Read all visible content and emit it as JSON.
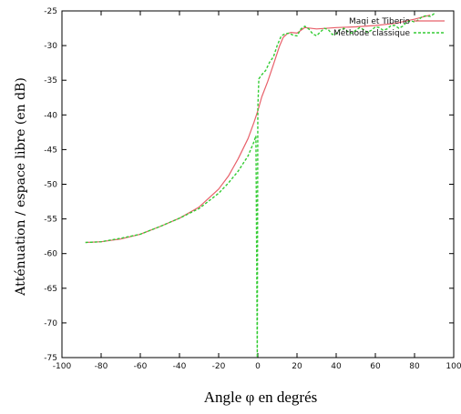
{
  "chart_data": {
    "type": "line",
    "xlabel": "Angle φ en degrés",
    "ylabel": "Atténuation / espace libre (en dB)",
    "xlim": [
      -100,
      100
    ],
    "ylim": [
      -75,
      -25
    ],
    "xticks": [
      -100,
      -80,
      -60,
      -40,
      -20,
      0,
      20,
      40,
      60,
      80,
      100
    ],
    "yticks": [
      -75,
      -70,
      -65,
      -60,
      -55,
      -50,
      -45,
      -40,
      -35,
      -30,
      -25
    ],
    "grid": false,
    "legend_position": "top-right",
    "series": [
      {
        "name": "Maqi et Tiberio",
        "color": "#e8606a",
        "style": "solid",
        "points": [
          [
            -88,
            -58.4
          ],
          [
            -80,
            -58.3
          ],
          [
            -70,
            -57.9
          ],
          [
            -60,
            -57.2
          ],
          [
            -50,
            -56.1
          ],
          [
            -40,
            -54.9
          ],
          [
            -30,
            -53.3
          ],
          [
            -20,
            -50.7
          ],
          [
            -15,
            -48.8
          ],
          [
            -10,
            -46.3
          ],
          [
            -5,
            -43.4
          ],
          [
            -2,
            -41.1
          ],
          [
            0,
            -39.4
          ],
          [
            2,
            -37.4
          ],
          [
            5,
            -35.2
          ],
          [
            8,
            -32.7
          ],
          [
            11,
            -30.1
          ],
          [
            13,
            -28.8
          ],
          [
            15,
            -28.3
          ],
          [
            17,
            -28.1
          ],
          [
            20,
            -28.2
          ],
          [
            24,
            -27.4
          ],
          [
            30,
            -27.6
          ],
          [
            40,
            -27.4
          ],
          [
            50,
            -27.3
          ],
          [
            60,
            -27.1
          ],
          [
            70,
            -26.8
          ],
          [
            80,
            -26.2
          ],
          [
            88,
            -25.6
          ]
        ]
      },
      {
        "name": "Méthode classique",
        "color": "#33cc33",
        "style": "dashed",
        "points": [
          [
            -88,
            -58.4
          ],
          [
            -80,
            -58.3
          ],
          [
            -70,
            -57.8
          ],
          [
            -60,
            -57.2
          ],
          [
            -50,
            -56.1
          ],
          [
            -40,
            -54.9
          ],
          [
            -30,
            -53.5
          ],
          [
            -20,
            -51.3
          ],
          [
            -15,
            -49.8
          ],
          [
            -10,
            -48.1
          ],
          [
            -5,
            -45.9
          ],
          [
            -2,
            -43.9
          ],
          [
            -1,
            -43.0
          ],
          [
            -0.3,
            -75
          ],
          [
            0,
            -39.0
          ],
          [
            0.5,
            -34.8
          ],
          [
            2,
            -34.2
          ],
          [
            4,
            -33.6
          ],
          [
            6,
            -32.4
          ],
          [
            8,
            -31.6
          ],
          [
            10,
            -29.9
          ],
          [
            12,
            -28.6
          ],
          [
            14,
            -28.3
          ],
          [
            16,
            -28.2
          ],
          [
            18,
            -28.5
          ],
          [
            20,
            -28.6
          ],
          [
            22,
            -27.6
          ],
          [
            24,
            -27.2
          ],
          [
            26,
            -27.6
          ],
          [
            28,
            -28.3
          ],
          [
            30,
            -28.6
          ],
          [
            32,
            -28.0
          ],
          [
            34,
            -27.5
          ],
          [
            36,
            -27.7
          ],
          [
            38,
            -28.4
          ],
          [
            40,
            -28.3
          ],
          [
            42,
            -27.7
          ],
          [
            44,
            -27.5
          ],
          [
            46,
            -28.0
          ],
          [
            48,
            -28.2
          ],
          [
            50,
            -27.8
          ],
          [
            52,
            -27.4
          ],
          [
            54,
            -27.7
          ],
          [
            56,
            -28.1
          ],
          [
            58,
            -27.8
          ],
          [
            60,
            -27.3
          ],
          [
            62,
            -27.4
          ],
          [
            64,
            -27.8
          ],
          [
            66,
            -27.6
          ],
          [
            68,
            -27.1
          ],
          [
            70,
            -27.1
          ],
          [
            72,
            -27.5
          ],
          [
            74,
            -27.2
          ],
          [
            76,
            -26.6
          ],
          [
            78,
            -26.4
          ],
          [
            80,
            -26.6
          ],
          [
            82,
            -26.3
          ],
          [
            84,
            -25.8
          ],
          [
            86,
            -25.7
          ],
          [
            88,
            -25.8
          ],
          [
            90,
            -25.4
          ],
          [
            91,
            -25.3
          ]
        ]
      }
    ]
  }
}
